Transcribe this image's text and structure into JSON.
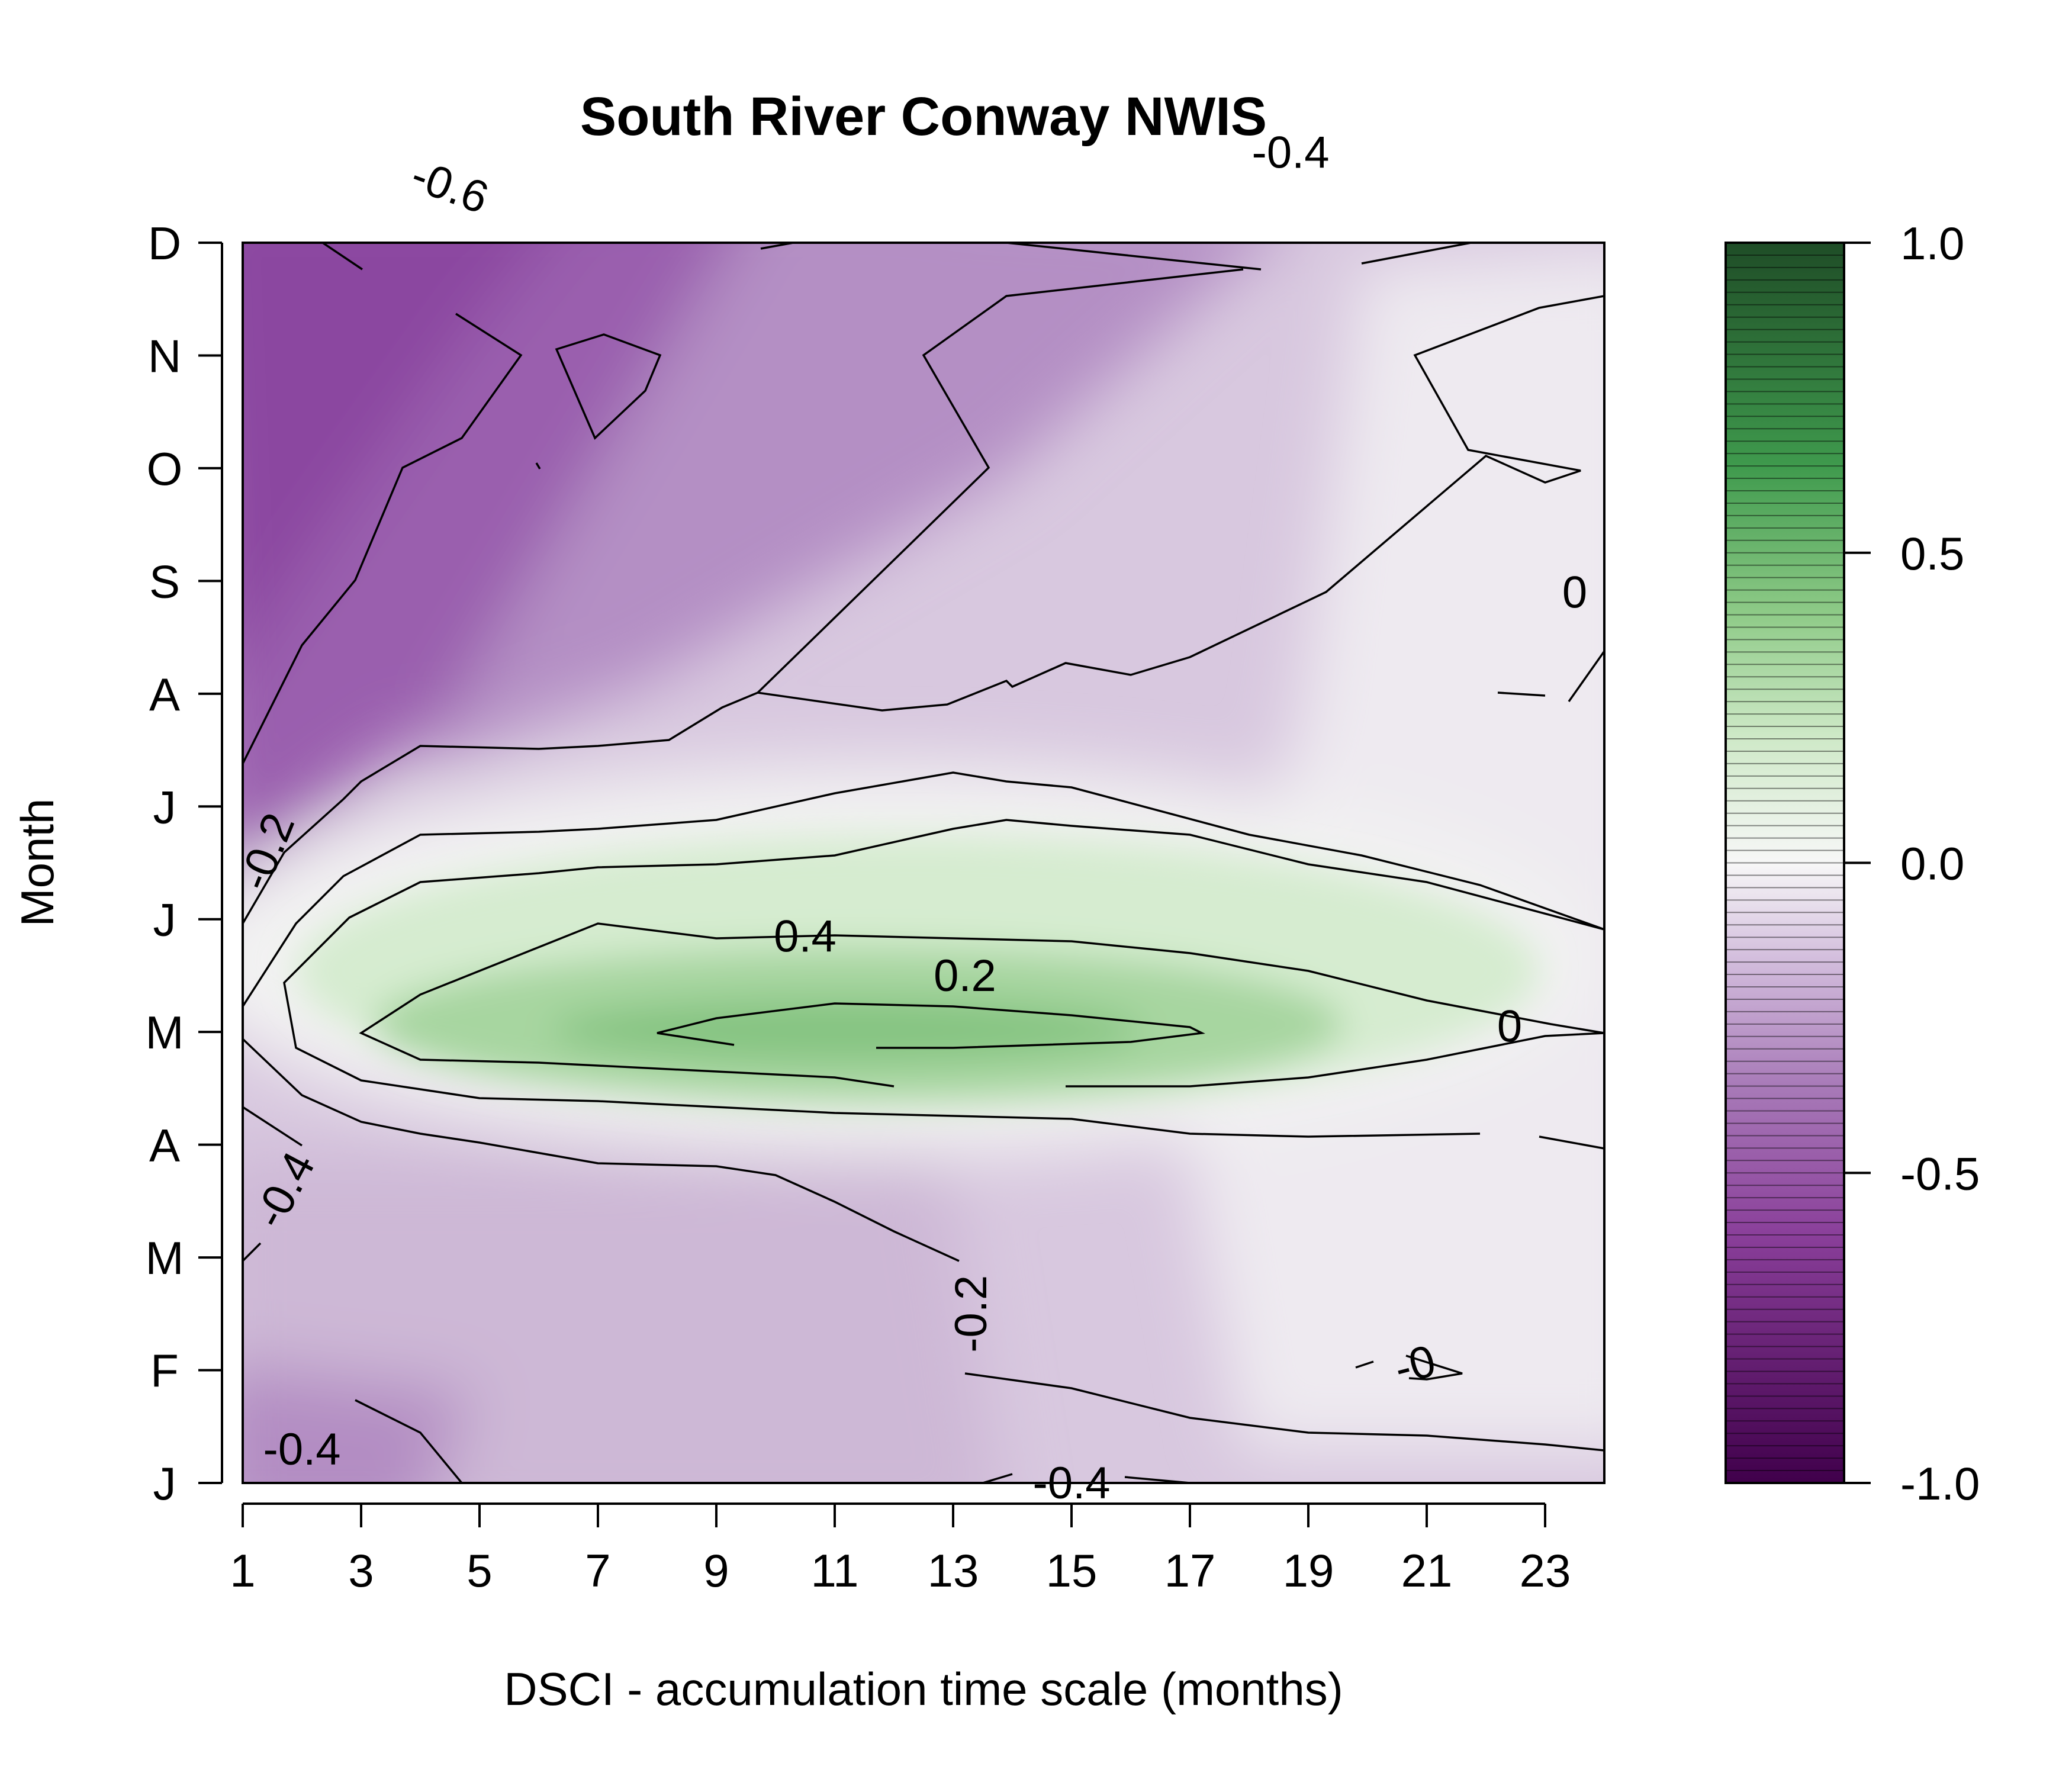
{
  "chart_data": {
    "type": "heatmap",
    "title": "South River Conway NWIS",
    "xlabel": "DSCI - accumulation time scale (months)",
    "ylabel": "Month",
    "x": [
      1,
      2,
      3,
      4,
      5,
      6,
      7,
      8,
      9,
      10,
      11,
      12,
      13,
      14,
      15,
      16,
      17,
      18,
      19,
      20,
      21,
      22,
      23,
      24
    ],
    "x_ticks": [
      "1",
      "3",
      "5",
      "7",
      "9",
      "11",
      "13",
      "15",
      "17",
      "19",
      "21",
      "23"
    ],
    "y_ticks": [
      "J",
      "F",
      "M",
      "A",
      "M",
      "J",
      "J",
      "A",
      "S",
      "O",
      "N",
      "D"
    ],
    "xlim": [
      1,
      24
    ],
    "zlim": [
      -1.0,
      1.0
    ],
    "colorbar_ticks": [
      "1.0",
      "0.5",
      "0.0",
      "-0.5",
      "-1.0"
    ],
    "colors": {
      "negative": "#40004b",
      "mid_negative": "#9c5fb0",
      "zero": "#f7f7f7",
      "mid_positive": "#7fbf7b",
      "positive": "#00441b"
    },
    "contour_labels": [
      {
        "text": "-0.6",
        "x": 4.5,
        "y": 11.5
      },
      {
        "text": "-0.4",
        "x": 18.7,
        "y": 11.8
      },
      {
        "text": "0",
        "x": 23.5,
        "y": 7.9
      },
      {
        "text": "-0.2",
        "x": 1.4,
        "y": 5.6
      },
      {
        "text": "0.4",
        "x": 10.5,
        "y": 4.85
      },
      {
        "text": "0.2",
        "x": 13.2,
        "y": 4.5
      },
      {
        "text": "0",
        "x": 22.4,
        "y": 4.05
      },
      {
        "text": "-0.4",
        "x": 1.7,
        "y": 2.6
      },
      {
        "text": "-0.2",
        "x": 13.3,
        "y": 1.5
      },
      {
        "text": "-0",
        "x": 20.8,
        "y": 1.05
      },
      {
        "text": "-0.4",
        "x": 2.0,
        "y": 0.3
      },
      {
        "text": "-0.4",
        "x": 15.0,
        "y": 0.0
      }
    ]
  }
}
